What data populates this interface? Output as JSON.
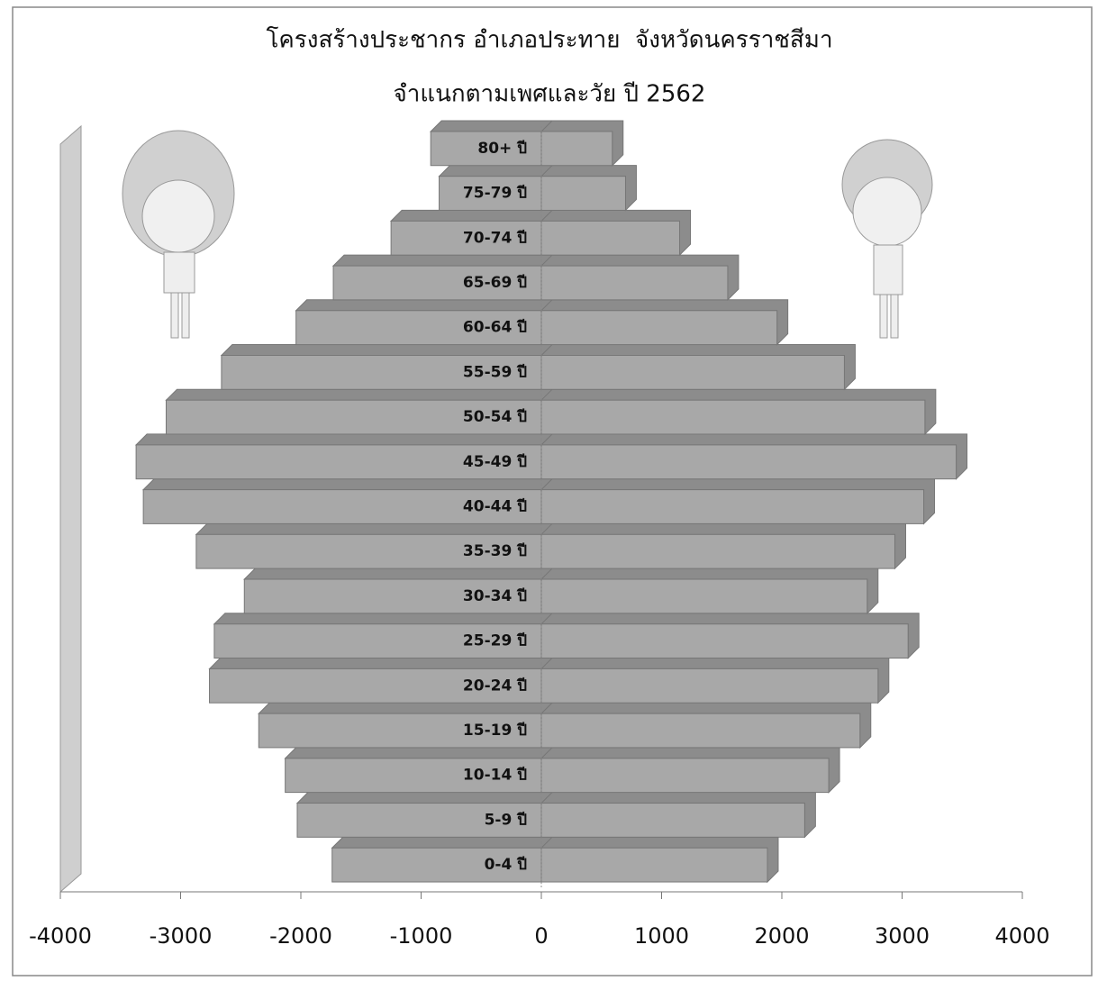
{
  "chart_data": {
    "type": "bar",
    "orientation": "horizontal",
    "title": "โครงสร้างประชากร อำเภอประทาย  จังหวัดนครราชสีมา",
    "subtitle": "จำแนกตามเพศและวัย ปี 2562",
    "categories": [
      "0-4 ปี",
      "5-9 ปี",
      "10-14 ปี",
      "15-19 ปี",
      "20-24 ปี",
      "25-29 ปี",
      "30-34 ปี",
      "35-39 ปี",
      "40-44 ปี",
      "45-49 ปี",
      "50-54 ปี",
      "55-59 ปี",
      "60-64 ปี",
      "65-69 ปี",
      "70-74 ปี",
      "75-79 ปี",
      "80+ ปี"
    ],
    "series": [
      {
        "color": "#a8a8a8",
        "values": [
          -1740,
          -2030,
          -2130,
          -2350,
          -2760,
          -2720,
          -2470,
          -2870,
          -3310,
          -3370,
          -3120,
          -2660,
          -2040,
          -1730,
          -1250,
          -850,
          -920
        ]
      },
      {
        "color": "#a8a8a8",
        "values": [
          1880,
          2190,
          2390,
          2650,
          2800,
          3050,
          2710,
          2940,
          3180,
          3450,
          3190,
          2520,
          1960,
          1550,
          1150,
          700,
          590
        ]
      }
    ],
    "xlim": [
      -4000,
      4000
    ],
    "xticks": [
      -4000,
      -3000,
      -2000,
      -1000,
      0,
      1000,
      2000,
      3000,
      4000
    ]
  }
}
